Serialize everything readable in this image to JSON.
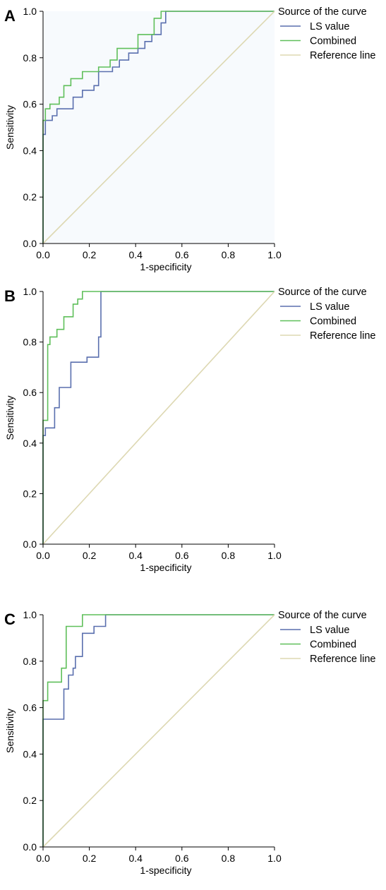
{
  "chart_data": [
    {
      "type": "line",
      "panel_label": "A",
      "xlabel": "1-specificity",
      "ylabel": "Sensitivity",
      "xlim": [
        0,
        1
      ],
      "ylim": [
        0,
        1
      ],
      "x_ticks": [
        "0.0",
        "0.2",
        "0.4",
        "0.6",
        "0.8",
        "1.0"
      ],
      "y_ticks": [
        "0.0",
        "0.2",
        "0.4",
        "0.6",
        "0.8",
        "1.0"
      ],
      "plot_background": "#f7fafd",
      "legend": {
        "title": "Source of the curve",
        "placement": "top-right"
      },
      "series": [
        {
          "name": "LS value",
          "color": "#5a6fae",
          "points": [
            [
              0,
              0
            ],
            [
              0,
              0.47
            ],
            [
              0.01,
              0.47
            ],
            [
              0.01,
              0.53
            ],
            [
              0.04,
              0.53
            ],
            [
              0.04,
              0.55
            ],
            [
              0.06,
              0.55
            ],
            [
              0.06,
              0.58
            ],
            [
              0.13,
              0.58
            ],
            [
              0.13,
              0.63
            ],
            [
              0.17,
              0.63
            ],
            [
              0.17,
              0.66
            ],
            [
              0.22,
              0.66
            ],
            [
              0.22,
              0.68
            ],
            [
              0.24,
              0.68
            ],
            [
              0.24,
              0.74
            ],
            [
              0.3,
              0.74
            ],
            [
              0.3,
              0.76
            ],
            [
              0.33,
              0.76
            ],
            [
              0.33,
              0.79
            ],
            [
              0.37,
              0.79
            ],
            [
              0.37,
              0.82
            ],
            [
              0.41,
              0.82
            ],
            [
              0.41,
              0.84
            ],
            [
              0.44,
              0.84
            ],
            [
              0.44,
              0.87
            ],
            [
              0.47,
              0.87
            ],
            [
              0.47,
              0.9
            ],
            [
              0.51,
              0.9
            ],
            [
              0.51,
              0.95
            ],
            [
              0.53,
              0.95
            ],
            [
              0.53,
              1
            ],
            [
              1,
              1
            ]
          ]
        },
        {
          "name": "Combined",
          "color": "#5fbf5a",
          "points": [
            [
              0,
              0
            ],
            [
              0,
              0.53
            ],
            [
              0.01,
              0.53
            ],
            [
              0.01,
              0.58
            ],
            [
              0.03,
              0.58
            ],
            [
              0.03,
              0.6
            ],
            [
              0.07,
              0.6
            ],
            [
              0.07,
              0.63
            ],
            [
              0.09,
              0.63
            ],
            [
              0.09,
              0.68
            ],
            [
              0.12,
              0.68
            ],
            [
              0.12,
              0.71
            ],
            [
              0.17,
              0.71
            ],
            [
              0.17,
              0.74
            ],
            [
              0.24,
              0.74
            ],
            [
              0.24,
              0.76
            ],
            [
              0.29,
              0.76
            ],
            [
              0.29,
              0.79
            ],
            [
              0.32,
              0.79
            ],
            [
              0.32,
              0.84
            ],
            [
              0.41,
              0.84
            ],
            [
              0.41,
              0.9
            ],
            [
              0.48,
              0.9
            ],
            [
              0.48,
              0.97
            ],
            [
              0.51,
              0.97
            ],
            [
              0.51,
              1
            ],
            [
              1,
              1
            ]
          ]
        },
        {
          "name": "Reference line",
          "color": "#ddd8b2",
          "points": [
            [
              0,
              0
            ],
            [
              1,
              1
            ]
          ]
        }
      ]
    },
    {
      "type": "line",
      "panel_label": "B",
      "xlabel": "1-specificity",
      "ylabel": "Sensitivity",
      "xlim": [
        0,
        1
      ],
      "ylim": [
        0,
        1
      ],
      "x_ticks": [
        "0.0",
        "0.2",
        "0.4",
        "0.6",
        "0.8",
        "1.0"
      ],
      "y_ticks": [
        "0.0",
        "0.2",
        "0.4",
        "0.6",
        "0.8",
        "1.0"
      ],
      "plot_background": "#ffffff",
      "legend": {
        "title": "Source of the curve",
        "placement": "top-right"
      },
      "series": [
        {
          "name": "LS value",
          "color": "#5a6fae",
          "points": [
            [
              0,
              0
            ],
            [
              0,
              0.43
            ],
            [
              0.01,
              0.43
            ],
            [
              0.01,
              0.46
            ],
            [
              0.05,
              0.46
            ],
            [
              0.05,
              0.54
            ],
            [
              0.07,
              0.54
            ],
            [
              0.07,
              0.62
            ],
            [
              0.12,
              0.62
            ],
            [
              0.12,
              0.72
            ],
            [
              0.19,
              0.72
            ],
            [
              0.19,
              0.74
            ],
            [
              0.24,
              0.74
            ],
            [
              0.24,
              0.82
            ],
            [
              0.25,
              0.82
            ],
            [
              0.25,
              1
            ],
            [
              1,
              1
            ]
          ]
        },
        {
          "name": "Combined",
          "color": "#5fbf5a",
          "points": [
            [
              0,
              0
            ],
            [
              0,
              0.49
            ],
            [
              0.02,
              0.49
            ],
            [
              0.02,
              0.79
            ],
            [
              0.03,
              0.79
            ],
            [
              0.03,
              0.82
            ],
            [
              0.06,
              0.82
            ],
            [
              0.06,
              0.85
            ],
            [
              0.09,
              0.85
            ],
            [
              0.09,
              0.9
            ],
            [
              0.13,
              0.9
            ],
            [
              0.13,
              0.95
            ],
            [
              0.15,
              0.95
            ],
            [
              0.15,
              0.97
            ],
            [
              0.17,
              0.97
            ],
            [
              0.17,
              1
            ],
            [
              1,
              1
            ]
          ]
        },
        {
          "name": "Reference line",
          "color": "#ddd8b2",
          "points": [
            [
              0,
              0
            ],
            [
              1,
              1
            ]
          ]
        }
      ]
    },
    {
      "type": "line",
      "panel_label": "C",
      "xlabel": "1-specificity",
      "ylabel": "Sensitivity",
      "xlim": [
        0,
        1
      ],
      "ylim": [
        0,
        1
      ],
      "x_ticks": [
        "0.0",
        "0.2",
        "0.4",
        "0.6",
        "0.8",
        "1.0"
      ],
      "y_ticks": [
        "0.0",
        "0.2",
        "0.4",
        "0.6",
        "0.8",
        "1.0"
      ],
      "plot_background": "#ffffff",
      "legend": {
        "title": "Source of the curve",
        "placement": "top-right"
      },
      "series": [
        {
          "name": "LS value",
          "color": "#5a6fae",
          "points": [
            [
              0,
              0
            ],
            [
              0,
              0.55
            ],
            [
              0.09,
              0.55
            ],
            [
              0.09,
              0.68
            ],
            [
              0.11,
              0.68
            ],
            [
              0.11,
              0.74
            ],
            [
              0.13,
              0.74
            ],
            [
              0.13,
              0.77
            ],
            [
              0.14,
              0.77
            ],
            [
              0.14,
              0.82
            ],
            [
              0.17,
              0.82
            ],
            [
              0.17,
              0.92
            ],
            [
              0.22,
              0.92
            ],
            [
              0.22,
              0.95
            ],
            [
              0.27,
              0.95
            ],
            [
              0.27,
              1
            ],
            [
              1,
              1
            ]
          ]
        },
        {
          "name": "Combined",
          "color": "#5fbf5a",
          "points": [
            [
              0,
              0
            ],
            [
              0,
              0.63
            ],
            [
              0.02,
              0.63
            ],
            [
              0.02,
              0.71
            ],
            [
              0.08,
              0.71
            ],
            [
              0.08,
              0.77
            ],
            [
              0.1,
              0.77
            ],
            [
              0.1,
              0.95
            ],
            [
              0.17,
              0.95
            ],
            [
              0.17,
              1
            ],
            [
              1,
              1
            ]
          ]
        },
        {
          "name": "Reference line",
          "color": "#ddd8b2",
          "points": [
            [
              0,
              0
            ],
            [
              1,
              1
            ]
          ]
        }
      ]
    }
  ]
}
